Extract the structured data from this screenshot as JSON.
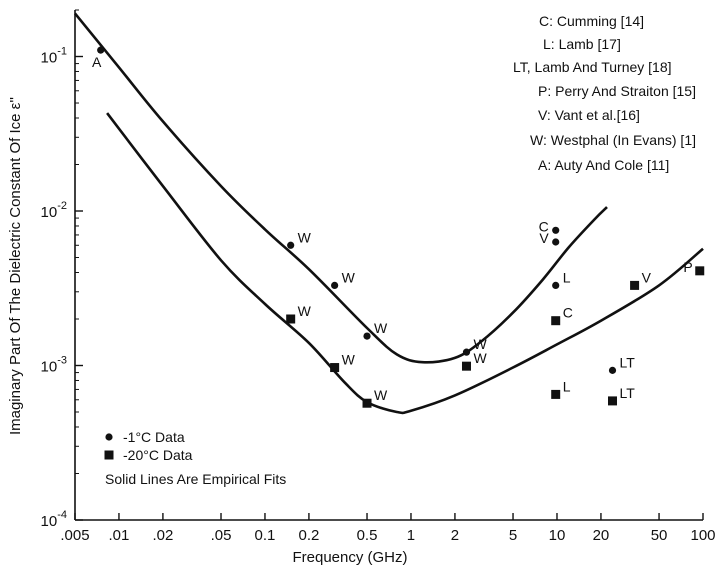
{
  "chart_data": {
    "type": "scatter",
    "xscale": "log",
    "yscale": "log",
    "xlim": [
      0.005,
      100
    ],
    "ylim": [
      0.0001,
      0.2
    ],
    "xlabel": "Frequency (GHz)",
    "ylabel": "Imaginary Part Of The Dielectric Constant Of Ice  ε''",
    "x_ticks": [
      {
        "value": 0.005,
        "label": ".005"
      },
      {
        "value": 0.01,
        "label": ".01"
      },
      {
        "value": 0.02,
        "label": ".02"
      },
      {
        "value": 0.05,
        "label": ".05"
      },
      {
        "value": 0.1,
        "label": "0.1"
      },
      {
        "value": 0.2,
        "label": "0.2"
      },
      {
        "value": 0.5,
        "label": "0.5"
      },
      {
        "value": 1,
        "label": "1"
      },
      {
        "value": 2,
        "label": "2"
      },
      {
        "value": 5,
        "label": "5"
      },
      {
        "value": 10,
        "label": "10"
      },
      {
        "value": 20,
        "label": "20"
      },
      {
        "value": 50,
        "label": "50"
      },
      {
        "value": 100,
        "label": "100"
      }
    ],
    "y_ticks": [
      {
        "value": 0.0001,
        "base": "10",
        "exp": "-4"
      },
      {
        "value": 0.001,
        "base": "10",
        "exp": "-3"
      },
      {
        "value": 0.01,
        "base": "10",
        "exp": "-2"
      },
      {
        "value": 0.1,
        "base": "10",
        "exp": "-1"
      }
    ],
    "series": [
      {
        "name": "-1°C Data",
        "marker": "circle",
        "points": [
          {
            "x": 0.0075,
            "y": 0.11,
            "label": "A",
            "label_pos": "below"
          },
          {
            "x": 0.15,
            "y": 0.006,
            "label": "W",
            "label_pos": "right"
          },
          {
            "x": 0.3,
            "y": 0.0033,
            "label": "W",
            "label_pos": "right"
          },
          {
            "x": 0.5,
            "y": 0.00155,
            "label": "W",
            "label_pos": "right"
          },
          {
            "x": 2.4,
            "y": 0.00122,
            "label": "W",
            "label_pos": "right"
          },
          {
            "x": 9.8,
            "y": 0.0075,
            "label": "C",
            "label_pos": "left"
          },
          {
            "x": 9.8,
            "y": 0.0063,
            "label": "V",
            "label_pos": "left"
          },
          {
            "x": 9.8,
            "y": 0.0033,
            "label": "L",
            "label_pos": "right"
          },
          {
            "x": 24,
            "y": 0.00093,
            "label": "LT",
            "label_pos": "right"
          }
        ]
      },
      {
        "name": "-20°C Data",
        "marker": "square",
        "points": [
          {
            "x": 0.15,
            "y": 0.002,
            "label": "W",
            "label_pos": "right"
          },
          {
            "x": 0.3,
            "y": 0.00097,
            "label": "W",
            "label_pos": "right"
          },
          {
            "x": 0.5,
            "y": 0.00057,
            "label": "W",
            "label_pos": "right"
          },
          {
            "x": 2.4,
            "y": 0.00099,
            "label": "W",
            "label_pos": "right"
          },
          {
            "x": 9.8,
            "y": 0.00195,
            "label": "C",
            "label_pos": "right"
          },
          {
            "x": 9.8,
            "y": 0.00065,
            "label": "L",
            "label_pos": "right"
          },
          {
            "x": 24,
            "y": 0.00059,
            "label": "LT",
            "label_pos": "right"
          },
          {
            "x": 34,
            "y": 0.0033,
            "label": "V",
            "label_pos": "right"
          },
          {
            "x": 95,
            "y": 0.0041,
            "label": "P",
            "label_pos": "left"
          }
        ]
      }
    ],
    "fit_lines": [
      {
        "points": [
          [
            0.005,
            0.19
          ],
          [
            0.01,
            0.085
          ],
          [
            0.02,
            0.038
          ],
          [
            0.05,
            0.0145
          ],
          [
            0.1,
            0.0076
          ],
          [
            0.2,
            0.0042
          ],
          [
            0.5,
            0.00175
          ],
          [
            0.8,
            0.00118
          ],
          [
            1.2,
            0.00105
          ],
          [
            2,
            0.00112
          ],
          [
            3,
            0.00142
          ],
          [
            5,
            0.0022
          ],
          [
            8,
            0.0036
          ],
          [
            12,
            0.0058
          ],
          [
            18,
            0.0088
          ],
          [
            22,
            0.0106
          ]
        ]
      },
      {
        "points": [
          [
            0.0083,
            0.043
          ],
          [
            0.02,
            0.0145
          ],
          [
            0.05,
            0.0048
          ],
          [
            0.1,
            0.0025
          ],
          [
            0.2,
            0.0014
          ],
          [
            0.35,
            0.00078
          ],
          [
            0.5,
            0.00058
          ],
          [
            0.8,
            0.0005
          ],
          [
            1,
            0.00051
          ],
          [
            2,
            0.00064
          ],
          [
            5,
            0.00097
          ],
          [
            10,
            0.00137
          ],
          [
            20,
            0.00195
          ],
          [
            50,
            0.0033
          ],
          [
            100,
            0.0057
          ]
        ]
      }
    ],
    "reference_legend": [
      "C: Cumming [14]",
      "L: Lamb [17]",
      "LT, Lamb And Turney [18]",
      "P: Perry And Straiton [15]",
      "V: Vant et al.[16]",
      "W: Westphal (In Evans) [1]",
      "A: Auty And Cole [11]"
    ],
    "legend": {
      "placement": "bottom-left",
      "circle_label": "-1°C Data",
      "square_label": "-20°C Data",
      "note": "Solid Lines Are Empirical Fits"
    },
    "grid": false
  }
}
